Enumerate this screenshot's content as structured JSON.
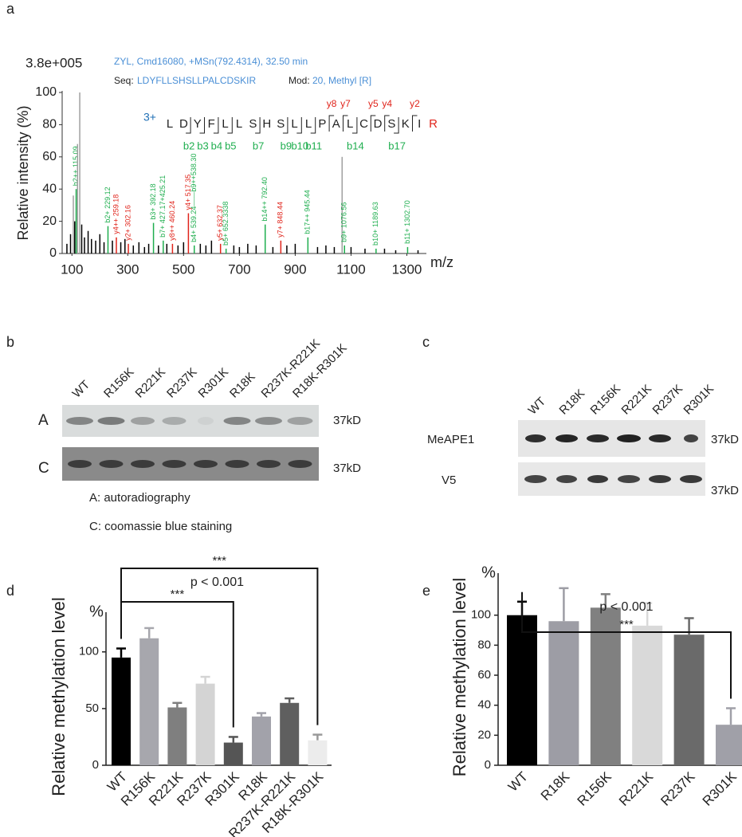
{
  "panel_labels": [
    "a",
    "b",
    "c",
    "d",
    "e"
  ],
  "chart_data": [
    {
      "type": "spectrum",
      "scale_label": "3.8e+005",
      "info": "ZYL, Cmd16080, +MSn(792.4314), 32.50 min",
      "seq_label": "Seq:",
      "sequence": "LDYFLLSHSLLPALCDSKIR",
      "mod_label": "Mod:",
      "mod": "20, Methyl [R]",
      "y_label": "Relative intensity (%)",
      "x_label": "m/z",
      "xlim": [
        65,
        1370
      ],
      "xticks": [
        100,
        300,
        500,
        700,
        900,
        1100,
        1300
      ],
      "ylim": [
        0,
        100
      ],
      "yticks": [
        0,
        20,
        40,
        60,
        80,
        100
      ],
      "x": [
        82,
        95,
        105,
        110,
        115.09,
        120,
        128,
        135,
        145,
        158,
        170,
        185,
        200,
        215,
        229.12,
        245,
        259.18,
        275,
        290,
        302.16,
        320,
        340,
        360,
        375,
        392.18,
        410,
        427.17,
        440,
        460.24,
        480,
        500,
        517.35,
        538.3,
        560,
        580,
        600,
        632.37,
        652.33,
        680,
        700,
        730,
        760,
        792.4,
        820,
        848.44,
        870,
        900,
        945.44,
        980,
        1010,
        1040,
        1068,
        1076.56,
        1100,
        1150,
        1189.63,
        1220,
        1260,
        1302.7,
        1340
      ],
      "values": [
        6,
        12,
        36,
        20,
        40,
        68,
        100,
        18,
        10,
        14,
        9,
        8,
        12,
        7,
        17,
        8,
        10,
        7,
        9,
        6,
        5,
        7,
        4,
        6,
        19,
        5,
        8,
        6,
        6,
        5,
        7,
        25,
        5,
        6,
        5,
        8,
        6,
        3,
        5,
        4,
        6,
        5,
        18,
        4,
        8,
        5,
        6,
        10,
        4,
        5,
        4,
        60,
        5,
        4,
        3,
        3,
        3,
        2,
        4,
        2
      ],
      "colors": [
        "#000000",
        "#000000",
        "#a0a0a0",
        "#000000",
        "#1fae4f",
        "#a0a0a0",
        "#a0a0a0",
        "#000000",
        "#000000",
        "#000000",
        "#000000",
        "#000000",
        "#000000",
        "#000000",
        "#1fae4f",
        "#000000",
        "#e0241b",
        "#000000",
        "#000000",
        "#e0241b",
        "#000000",
        "#000000",
        "#000000",
        "#000000",
        "#1fae4f",
        "#000000",
        "#1fae4f",
        "#000000",
        "#e0241b",
        "#000000",
        "#000000",
        "#e0241b",
        "#1fae4f",
        "#000000",
        "#000000",
        "#000000",
        "#e0241b",
        "#1fae4f",
        "#000000",
        "#000000",
        "#000000",
        "#000000",
        "#1fae4f",
        "#000000",
        "#e0241b",
        "#000000",
        "#000000",
        "#1fae4f",
        "#000000",
        "#000000",
        "#000000",
        "#a0a0a0",
        "#1fae4f",
        "#000000",
        "#000000",
        "#1fae4f",
        "#000000",
        "#000000",
        "#1fae4f",
        "#000000"
      ],
      "peak_labels": [
        null,
        null,
        null,
        null,
        "b2++ 115.09",
        null,
        null,
        null,
        null,
        null,
        null,
        null,
        null,
        null,
        "b2+ 229.12",
        null,
        "y4++ 259.18",
        null,
        null,
        "y2+ 302.16",
        null,
        null,
        null,
        null,
        "b3+ 392.18",
        null,
        "b7+ 427.17+425.21",
        null,
        "y8++ 460.24",
        null,
        null,
        "y4+ 517.35",
        "b4+ 539.24——b9++538.30",
        null,
        null,
        null,
        "y5+ 632.37",
        "b5+ 652.3338",
        null,
        null,
        null,
        null,
        "b14++ 792.40",
        null,
        "y7+ 848.44",
        null,
        null,
        "b17++ 945.44",
        null,
        null,
        null,
        null,
        "b9+ 1076.56",
        null,
        null,
        "b10+ 1189.63",
        null,
        null,
        "b11+ 1302.70",
        null
      ],
      "fragment_map": {
        "charge": "3+",
        "residues": [
          "L",
          "D",
          "Y",
          "F",
          "L",
          "L",
          "S",
          "H",
          "S",
          "L",
          "L",
          "P",
          "A",
          "L",
          "C",
          "D",
          "S",
          "K",
          "I",
          "R"
        ],
        "y_ions": [
          "y8",
          "y7",
          "y5",
          "y4",
          "y2"
        ],
        "b_ions": [
          "b2",
          "b3",
          "b4",
          "b5",
          "b7",
          "b9",
          "b10",
          "b11",
          "b14",
          "b17"
        ]
      }
    },
    {
      "type": "bar",
      "unit_label": "%",
      "y_label": "Relative methylation level",
      "categories": [
        "WT",
        "R156K",
        "R221K",
        "R237K",
        "R301K",
        "R18K",
        "R237K-R221K",
        "R18K-R301K"
      ],
      "values": [
        95,
        112,
        51,
        72,
        20,
        43,
        55,
        22
      ],
      "errors": [
        8,
        9,
        4,
        6,
        5,
        3,
        4,
        5
      ],
      "colors": [
        "#000000",
        "#a7a7ad",
        "#7f7f7f",
        "#d4d4d4",
        "#555555",
        "#a2a2aa",
        "#5f5f5f",
        "#ececec"
      ],
      "ylim": [
        0,
        135
      ],
      "yticks": [
        0,
        50,
        100
      ],
      "comparisons": [
        {
          "from": "WT",
          "to": "R301K",
          "label": "***",
          "note": "p < 0.001"
        },
        {
          "from": "WT",
          "to": "R18K-R301K",
          "label": "***"
        }
      ]
    },
    {
      "type": "bar",
      "unit_label": "%",
      "y_label": "Relative methylation level",
      "categories": [
        "WT",
        "R18K",
        "R156K",
        "R221K",
        "R237K",
        "R301K"
      ],
      "values": [
        100,
        96,
        105,
        93,
        87,
        27
      ],
      "errors": [
        9,
        22,
        9,
        15,
        11,
        11
      ],
      "colors": [
        "#000000",
        "#9d9da5",
        "#808080",
        "#d9d9d9",
        "#6a6a6a",
        "#a0a0a8"
      ],
      "ylim": [
        0,
        128
      ],
      "yticks": [
        0,
        20,
        40,
        60,
        80,
        100
      ],
      "comparisons": [
        {
          "from": "WT",
          "to": "R301K",
          "label": "***",
          "note": "p < 0.001"
        }
      ]
    }
  ],
  "blots": {
    "b": {
      "lanes": [
        "WT",
        "R156K",
        "R221K",
        "R237K",
        "R301K",
        "R18K",
        "R237K-R221K",
        "R18K-R301K"
      ],
      "rows": [
        {
          "label": "A",
          "size": "37kD"
        },
        {
          "label": "C",
          "size": "37kD"
        }
      ],
      "captions": [
        "A: autoradiography",
        "C: coomassie blue staining"
      ]
    },
    "c": {
      "lanes": [
        "WT",
        "R18K",
        "R156K",
        "R221K",
        "R237K",
        "R301K"
      ],
      "rows": [
        {
          "label": "MeAPE1",
          "size": "37kD"
        },
        {
          "label": "V5",
          "size": "37kD"
        }
      ]
    }
  }
}
